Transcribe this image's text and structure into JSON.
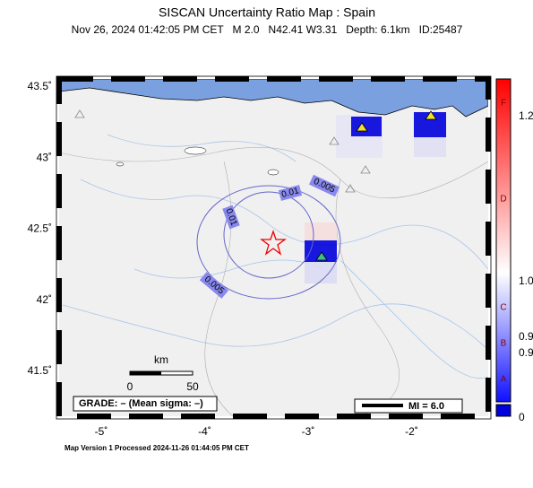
{
  "header": {
    "title": "SISCAN Uncertainty Ratio Map : Spain",
    "subtitle": "Nov 26, 2024 01:42:05 PM CET   M 2.0   N42.41 W3.31   Depth: 6.1km   ID:25487"
  },
  "axes": {
    "lat_ticks": [
      {
        "value": 43.5,
        "label": "43.5˚"
      },
      {
        "value": 43,
        "label": "43˚"
      },
      {
        "value": 42.5,
        "label": "42.5˚"
      },
      {
        "value": 42,
        "label": "42˚"
      },
      {
        "value": 41.5,
        "label": "41.5˚"
      }
    ],
    "lon_ticks": [
      {
        "value": -5,
        "label": "-5˚"
      },
      {
        "value": -4,
        "label": "-4˚"
      },
      {
        "value": -3,
        "label": "-3˚"
      },
      {
        "value": -2,
        "label": "-2˚"
      }
    ]
  },
  "contours": [
    "0.005",
    "0.01",
    "0.01",
    "0.005"
  ],
  "scale_bar": {
    "unit": "km",
    "start": "0",
    "end": "50"
  },
  "grade": "GRADE: – (Mean sigma: –)",
  "magnitude_legend": "MI = 6.0",
  "colorbar": {
    "grades": [
      "F",
      "D",
      "C",
      "B",
      "A"
    ],
    "labels": [
      "1.2",
      "1.0",
      "0.9",
      "0.9",
      "0"
    ]
  },
  "footer": "Map Version 1 Processed 2024-11-26 01:44:05 PM CET"
}
